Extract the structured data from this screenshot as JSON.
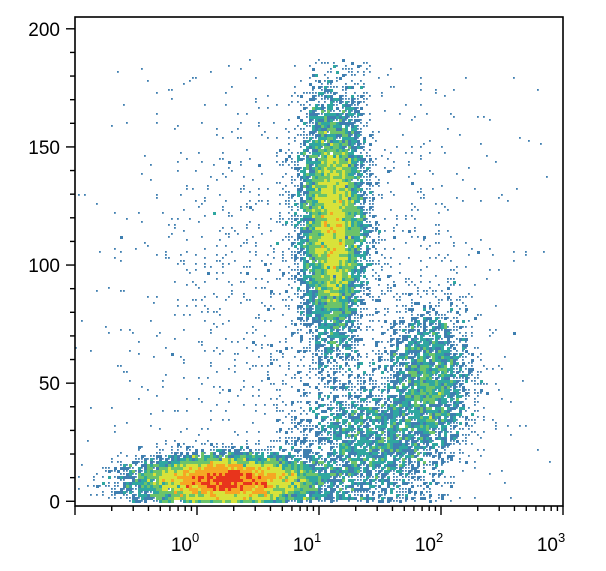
{
  "chart_data": {
    "type": "heatmap",
    "subtype": "density-scatter",
    "title": "",
    "xlabel": "",
    "ylabel": "",
    "x_scale": "log",
    "xlim": [
      0.1,
      1000
    ],
    "ylim": [
      -2,
      205
    ],
    "grid": false,
    "legend": "none",
    "x_ticks": [
      {
        "base": "10",
        "exp": "0",
        "value": 1
      },
      {
        "base": "10",
        "exp": "1",
        "value": 10
      },
      {
        "base": "10",
        "exp": "2",
        "value": 100
      },
      {
        "base": "10",
        "exp": "3",
        "value": 1000
      }
    ],
    "y_ticks": [
      {
        "label": "0",
        "value": 0
      },
      {
        "label": "50",
        "value": 50
      },
      {
        "label": "100",
        "value": 100
      },
      {
        "label": "150",
        "value": 150
      },
      {
        "label": "200",
        "value": 200
      }
    ],
    "colormap": [
      "#3b4a8c",
      "#3f7fb0",
      "#2fa7a0",
      "#6cc36a",
      "#d8e23a",
      "#f6a623",
      "#e8341c"
    ],
    "populations": [
      {
        "name_hidden": true,
        "center_x": 1.8,
        "center_y": 9,
        "spread_log_x": 0.35,
        "spread_y": 5,
        "weight": 0.42
      },
      {
        "name_hidden": true,
        "center_x": 13,
        "center_y": 118,
        "spread_log_x": 0.13,
        "spread_y": 26,
        "weight": 0.33
      },
      {
        "name_hidden": true,
        "center_x": 80,
        "center_y": 50,
        "spread_log_x": 0.18,
        "spread_y": 17,
        "weight": 0.1
      },
      {
        "name_hidden": true,
        "center_x": 25,
        "center_y": 25,
        "spread_log_x": 0.3,
        "spread_y": 14,
        "weight": 0.09
      },
      {
        "name_hidden": true,
        "center_x": 8,
        "center_y": 90,
        "spread_log_x": 0.8,
        "spread_y": 50,
        "weight": 0.06
      }
    ]
  }
}
